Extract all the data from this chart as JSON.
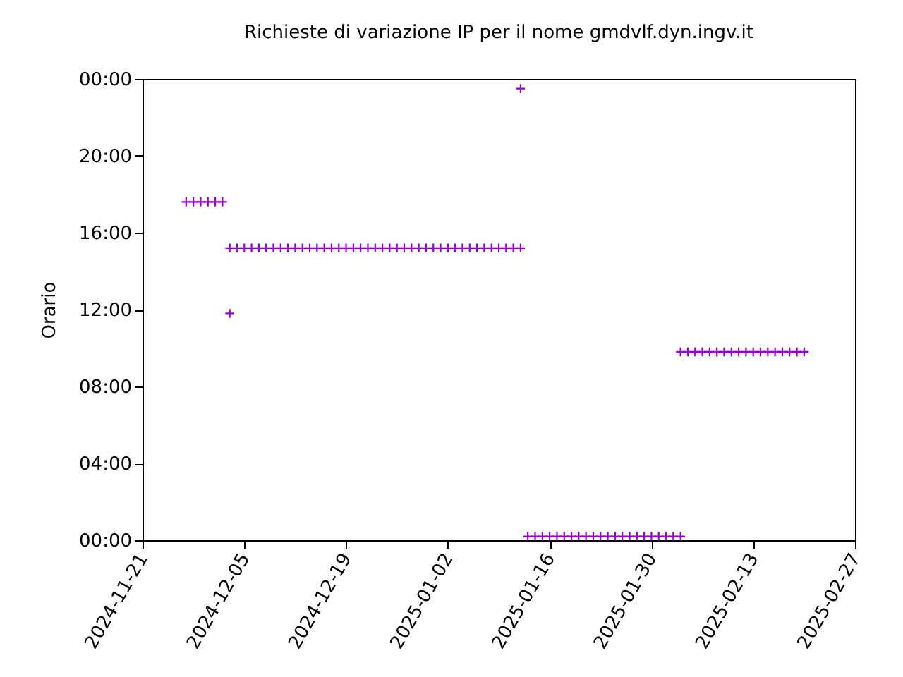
{
  "chart_data": {
    "type": "scatter",
    "title": "Richieste di variazione IP per il nome gmdvlf.dyn.ingv.it",
    "ylabel": "Orario",
    "marker": "cross",
    "grid": false,
    "series": [
      {
        "color": "#9400d3",
        "x": [
          "2024-11-27",
          "2024-11-28",
          "2024-11-29",
          "2024-11-30",
          "2024-12-01",
          "2024-12-02",
          "2024-12-03",
          "2024-12-03",
          "2024-12-04",
          "2024-12-05",
          "2024-12-06",
          "2024-12-07",
          "2024-12-08",
          "2024-12-09",
          "2024-12-10",
          "2024-12-11",
          "2024-12-12",
          "2024-12-13",
          "2024-12-14",
          "2024-12-15",
          "2024-12-16",
          "2024-12-17",
          "2024-12-18",
          "2024-12-19",
          "2024-12-20",
          "2024-12-21",
          "2024-12-22",
          "2024-12-23",
          "2024-12-24",
          "2024-12-25",
          "2024-12-26",
          "2024-12-27",
          "2024-12-28",
          "2024-12-29",
          "2024-12-30",
          "2024-12-31",
          "2025-01-01",
          "2025-01-02",
          "2025-01-03",
          "2025-01-04",
          "2025-01-05",
          "2025-01-06",
          "2025-01-07",
          "2025-01-08",
          "2025-01-09",
          "2025-01-10",
          "2025-01-11",
          "2025-01-12",
          "2025-01-12",
          "2025-01-13",
          "2025-01-14",
          "2025-01-15",
          "2025-01-16",
          "2025-01-17",
          "2025-01-18",
          "2025-01-19",
          "2025-01-20",
          "2025-01-21",
          "2025-01-22",
          "2025-01-23",
          "2025-01-24",
          "2025-01-25",
          "2025-01-26",
          "2025-01-27",
          "2025-01-28",
          "2025-01-29",
          "2025-01-30",
          "2025-01-31",
          "2025-02-01",
          "2025-02-02",
          "2025-02-03",
          "2025-02-03",
          "2025-02-04",
          "2025-02-05",
          "2025-02-06",
          "2025-02-07",
          "2025-02-08",
          "2025-02-09",
          "2025-02-10",
          "2025-02-11",
          "2025-02-12",
          "2025-02-13",
          "2025-02-14",
          "2025-02-15",
          "2025-02-16",
          "2025-02-17",
          "2025-02-18",
          "2025-02-19",
          "2025-02-20"
        ],
        "values": [
          17.6,
          17.6,
          17.6,
          17.6,
          17.6,
          17.6,
          11.8,
          15.2,
          15.2,
          15.2,
          15.2,
          15.2,
          15.2,
          15.2,
          15.2,
          15.2,
          15.2,
          15.2,
          15.2,
          15.2,
          15.2,
          15.2,
          15.2,
          15.2,
          15.2,
          15.2,
          15.2,
          15.2,
          15.2,
          15.2,
          15.2,
          15.2,
          15.2,
          15.2,
          15.2,
          15.2,
          15.2,
          15.2,
          15.2,
          15.2,
          15.2,
          15.2,
          15.2,
          15.2,
          15.2,
          15.2,
          15.2,
          15.2,
          23.5,
          0.2,
          0.2,
          0.2,
          0.2,
          0.2,
          0.2,
          0.2,
          0.2,
          0.2,
          0.2,
          0.2,
          0.2,
          0.2,
          0.2,
          0.2,
          0.2,
          0.2,
          0.2,
          0.2,
          0.2,
          0.2,
          0.2,
          9.8,
          9.8,
          9.8,
          9.8,
          9.8,
          9.8,
          9.8,
          9.8,
          9.8,
          9.8,
          9.8,
          9.8,
          9.8,
          9.8,
          9.8,
          9.8,
          9.8,
          9.8
        ]
      }
    ],
    "xlim": [
      "2024-11-21",
      "2025-02-27"
    ],
    "xticks": [
      "2024-11-21",
      "2024-12-05",
      "2024-12-19",
      "2025-01-02",
      "2025-01-16",
      "2025-01-30",
      "2025-02-13",
      "2025-02-27"
    ],
    "ylim": [
      0,
      24
    ],
    "yticks": [
      {
        "value": 0,
        "label": "00:00"
      },
      {
        "value": 4,
        "label": "04:00"
      },
      {
        "value": 8,
        "label": "08:00"
      },
      {
        "value": 12,
        "label": "12:00"
      },
      {
        "value": 16,
        "label": "16:00"
      },
      {
        "value": 20,
        "label": "20:00"
      },
      {
        "value": 24,
        "label": "00:00"
      }
    ]
  }
}
